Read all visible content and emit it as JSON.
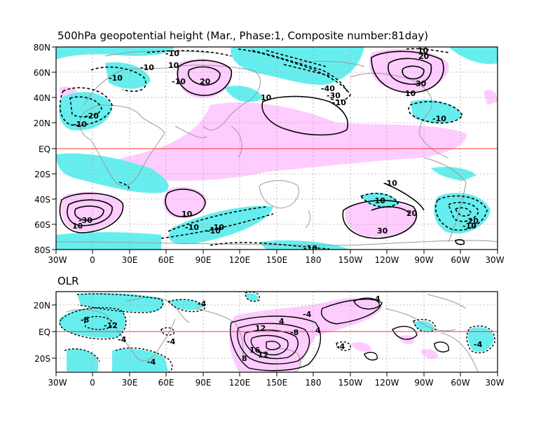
{
  "panels": [
    {
      "id": "top",
      "title": "500hPa geopotential height (Mar., Phase:1, Composite number:81day)",
      "y_ticks": [
        "80N",
        "60N",
        "40N",
        "20N",
        "EQ",
        "20S",
        "40S",
        "60S",
        "80S"
      ],
      "x_ticks": [
        "30W",
        "0",
        "30E",
        "60E",
        "90E",
        "120E",
        "150E",
        "180",
        "150W",
        "120W",
        "90W",
        "60W",
        "30W"
      ],
      "contour_labels": [
        "-10",
        "10",
        "-10",
        "20",
        "-10",
        "10",
        "-40",
        "-30",
        "-10",
        "10",
        "10",
        "20",
        "30",
        "10",
        "-20",
        "-10",
        "-10",
        "-10",
        "-10",
        "10",
        "-30",
        "10",
        "20",
        "-10",
        "-10",
        "30",
        "-10",
        "-20",
        "-10",
        "-10",
        "-10"
      ]
    },
    {
      "id": "bottom",
      "title": "OLR",
      "y_ticks": [
        "20N",
        "EQ",
        "20S"
      ],
      "x_ticks": [
        "30W",
        "0",
        "30E",
        "60E",
        "90E",
        "120E",
        "150E",
        "180",
        "150W",
        "120W",
        "90W",
        "60W",
        "30W"
      ],
      "contour_labels": [
        "-8",
        "-12",
        "-4",
        "-4",
        "-4",
        "-4",
        "12",
        "4",
        "-8",
        "4",
        "16",
        "12",
        "8",
        "-4",
        "4",
        "-4",
        "-4"
      ]
    }
  ],
  "colors": {
    "positive_shading": "#ffccff",
    "negative_shading": "#66eeee",
    "equator_line": "#ff3333",
    "coastline": "#999999",
    "grid": "#aaaaaa"
  }
}
